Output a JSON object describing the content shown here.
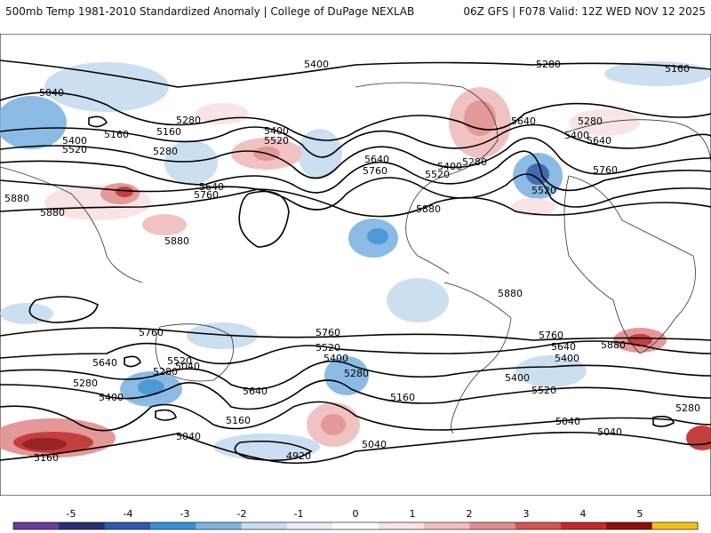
{
  "header": {
    "left": "500mb Temp 1981-2010 Standardized Anomaly | College of DuPage NEXLAB",
    "right": "06Z GFS | F078 Valid: 12Z WED NOV 12 2025"
  },
  "contour_labels": [
    "5400",
    "5280",
    "5160",
    "5040",
    "5280",
    "5160",
    "5160",
    "5400",
    "5520",
    "5280",
    "5400",
    "5520",
    "5640",
    "5760",
    "5880",
    "5880",
    "5880",
    "5640",
    "5760",
    "5880",
    "5400",
    "5280",
    "5640",
    "5520",
    "5280",
    "5400",
    "5760",
    "5640",
    "5520",
    "5880",
    "5760",
    "5640",
    "5520",
    "5280",
    "5400",
    "5640",
    "5280",
    "5160",
    "5040",
    "5400",
    "5280",
    "5760",
    "5520",
    "5400",
    "5160",
    "5040",
    "4920",
    "5040",
    "5760",
    "5640",
    "5400",
    "5520",
    "5280",
    "5040",
    "5160",
    "5040",
    "5880"
  ],
  "colorbar": {
    "ticks": [
      "-5",
      "-4",
      "-3",
      "-2",
      "-1",
      "0",
      "1",
      "2",
      "3",
      "4",
      "5"
    ],
    "colors": [
      "#6a3d9a",
      "#24306f",
      "#2e5aa8",
      "#3a8fd3",
      "#7fb4e3",
      "#c6dcf0",
      "#e6eef8",
      "#ffffff",
      "#f8e2e2",
      "#f0bcbc",
      "#e28d8d",
      "#d45555",
      "#bf2a2a",
      "#8c0d0d",
      "#f2c21b"
    ]
  }
}
